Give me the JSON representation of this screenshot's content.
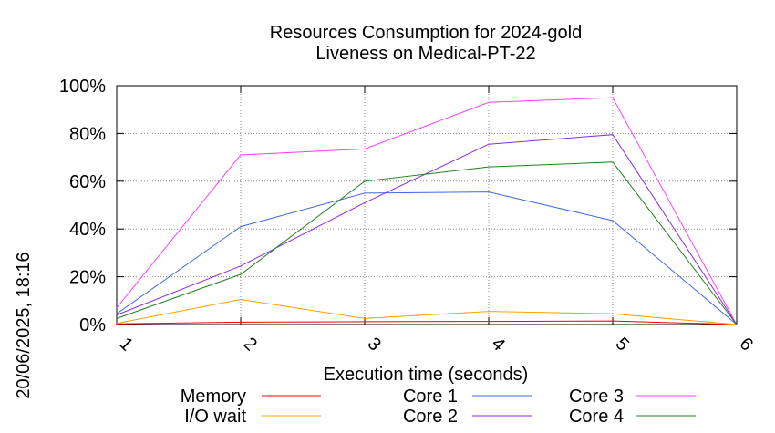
{
  "chart_data": {
    "type": "line",
    "title_line1": "Resources Consumption for 2024-gold",
    "title_line2": "Liveness on Medical-PT-22",
    "xlabel": "Execution time (seconds)",
    "side_label": "20/06/2025, 18:16",
    "x": [
      1,
      2,
      3,
      4,
      5,
      6
    ],
    "x_ticks": [
      "1",
      "2",
      "3",
      "4",
      "5",
      "6"
    ],
    "y_ticks": [
      "0%",
      "20%",
      "40%",
      "60%",
      "80%",
      "100%"
    ],
    "ylim": [
      0,
      100
    ],
    "xlim": [
      1,
      6
    ],
    "grid": true,
    "series": [
      {
        "name": "Memory",
        "color": "#ff0000",
        "values": [
          0.3,
          1.0,
          1.2,
          1.3,
          1.5,
          0
        ]
      },
      {
        "name": "I/O wait",
        "color": "#ffa000",
        "values": [
          0.5,
          10.5,
          2.5,
          5.5,
          4.5,
          0
        ]
      },
      {
        "name": "Core 1",
        "color": "#4169e1",
        "values": [
          4.5,
          41,
          55,
          55.5,
          43.5,
          0
        ]
      },
      {
        "name": "Core 2",
        "color": "#8a2be2",
        "values": [
          4,
          24.5,
          51,
          75.5,
          79.5,
          0
        ]
      },
      {
        "name": "Core 3",
        "color": "#ff40ff",
        "values": [
          7,
          71,
          73.5,
          93,
          95,
          0
        ]
      },
      {
        "name": "Core 4",
        "color": "#208020",
        "values": [
          2.5,
          21,
          60,
          66,
          68,
          0
        ]
      }
    ]
  }
}
